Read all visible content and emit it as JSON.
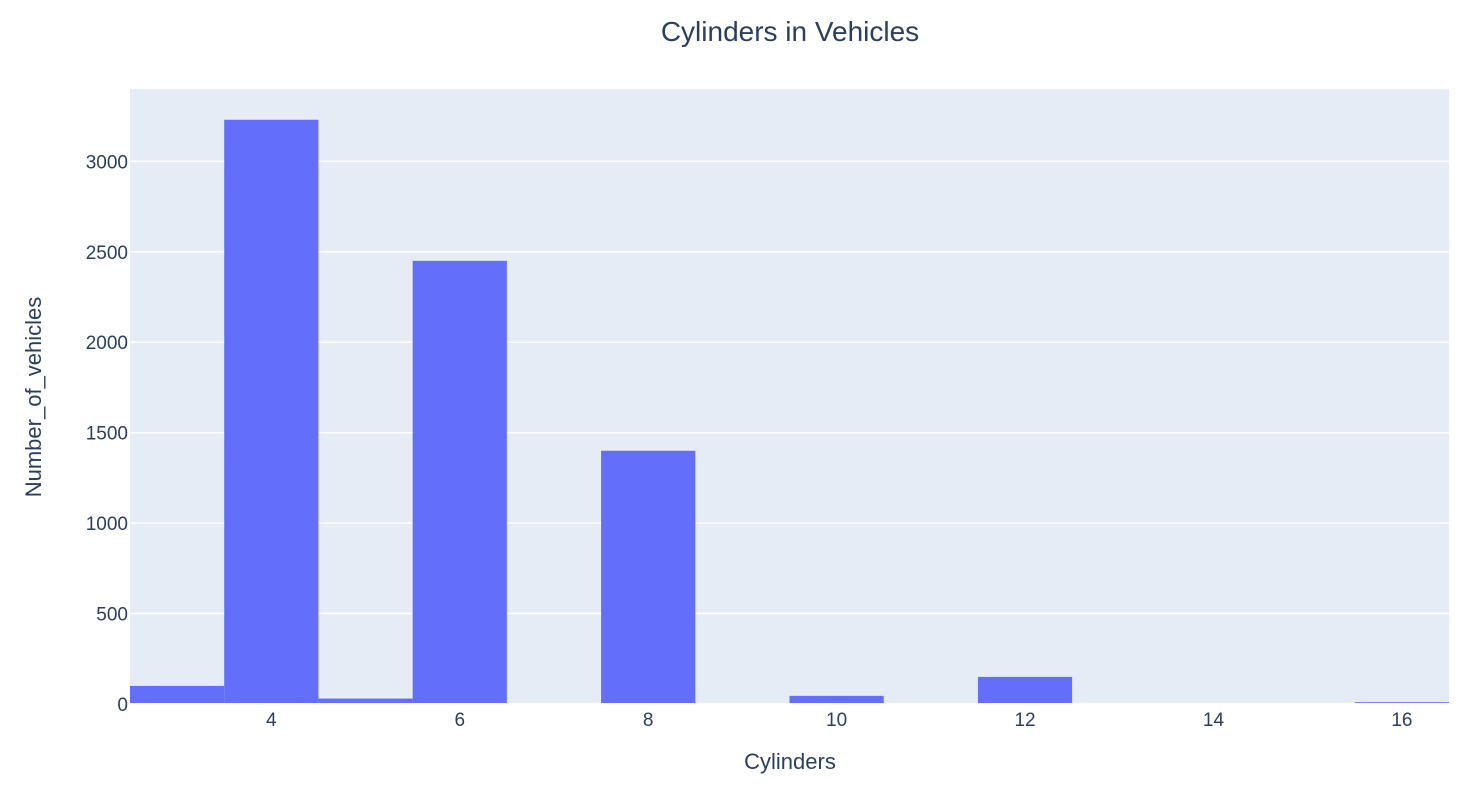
{
  "chart_data": {
    "type": "bar",
    "title": "Cylinders in Vehicles",
    "xlabel": "Cylinders",
    "ylabel": "Number_of_vehicles",
    "x": [
      3,
      4,
      5,
      6,
      8,
      10,
      12,
      16
    ],
    "values": [
      100,
      3230,
      30,
      2450,
      1400,
      45,
      150,
      10
    ],
    "bar_width": 1,
    "xlim": [
      2.5,
      16.5
    ],
    "ylim": [
      0,
      3400
    ],
    "x_ticks": [
      4,
      6,
      8,
      10,
      12,
      14,
      16
    ],
    "y_ticks": [
      0,
      500,
      1000,
      1500,
      2000,
      2500,
      3000
    ],
    "grid": true,
    "legend": "none",
    "colors": {
      "bar": "#636efa",
      "plot_bg": "#e5ecf6",
      "grid": "#ffffff",
      "text": "#2a3f5f",
      "paper_bg": "#ffffff"
    }
  }
}
